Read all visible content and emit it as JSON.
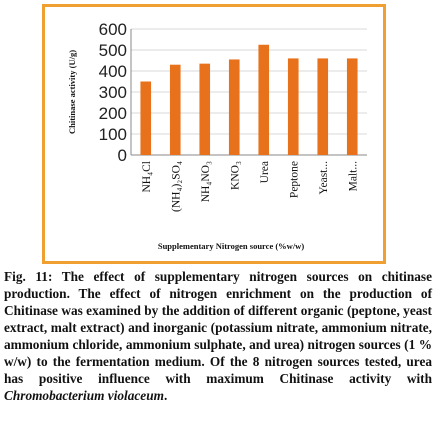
{
  "chart_data": {
    "type": "bar",
    "title": "",
    "xlabel": "Supplementary Nitrogen source (%w/w)",
    "ylabel": "Chitinase activity (U/g)",
    "ylim": [
      0,
      600
    ],
    "yticks": [
      "0",
      "100",
      "200",
      "300",
      "400",
      "500",
      "600"
    ],
    "grid": true,
    "categories": [
      "NH₄Cl",
      "(NH₄)₂SO₄",
      "NH₄NO₃",
      "KNO₃",
      "Urea",
      "Peptone",
      "Yeast...",
      "Malt..."
    ],
    "values": [
      350,
      430,
      435,
      455,
      525,
      460,
      460,
      460
    ],
    "bar_color": "#e8711c"
  },
  "caption": {
    "lead": "Fig. 11: The effect of supplementary nitrogen sources on chitinase production. The effect of nitrogen enrichment on the production of Chitinase was examined by the addition of different organic (peptone, yeast extract, malt extract) and inorganic (potassium nitrate, ammonium nitrate, ammonium chloride, ammonium sulphate, and urea) nitrogen sources (1 % w/w) to the fermentation medium. Of the 8 nitrogen sources tested, urea has positive influence with maximum Chitinase activity with ",
    "organism": "Chromobacterium violaceum",
    "tail": "."
  }
}
